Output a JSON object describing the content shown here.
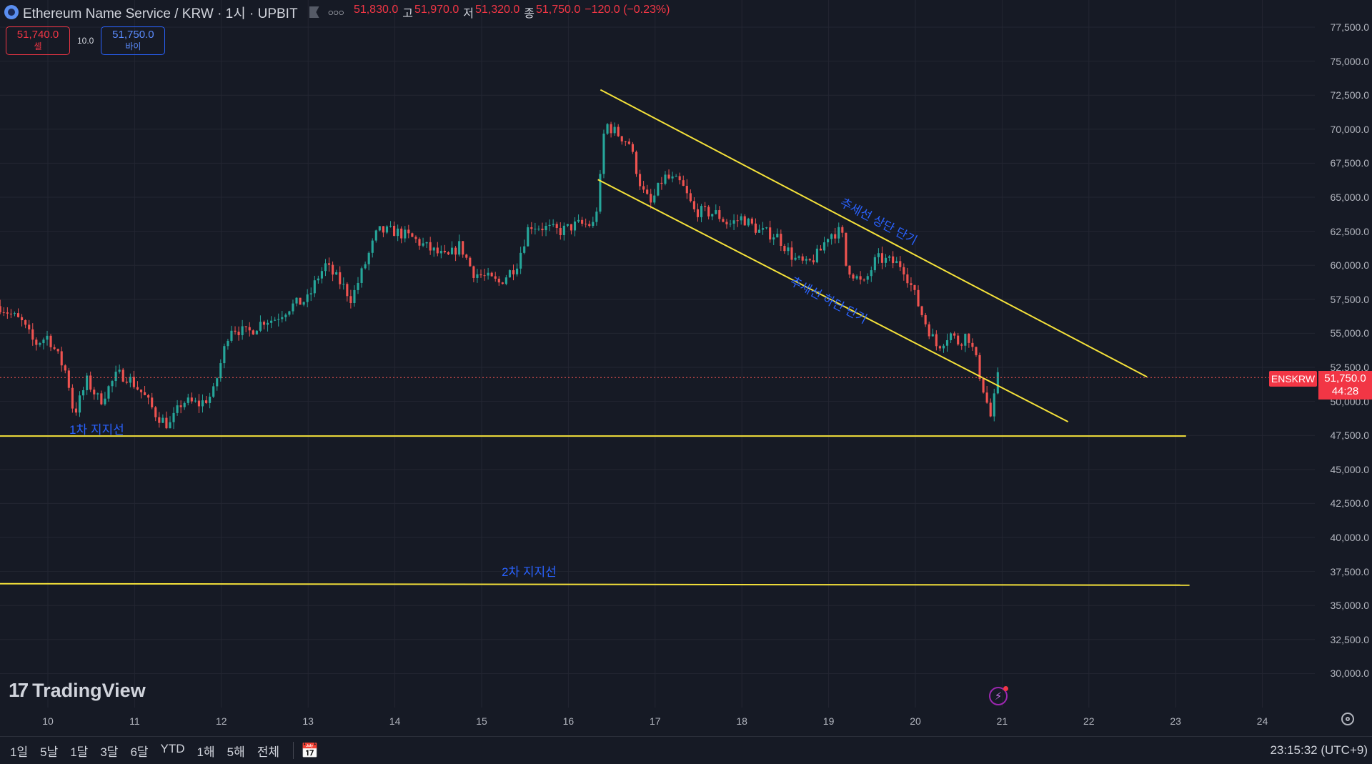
{
  "header": {
    "symbol_title": "Ethereum Name Service / KRW · 1시 · UPBIT",
    "ohlc": [
      {
        "key": "",
        "value": "51,830.0"
      },
      {
        "key": "고",
        "value": "51,970.0"
      },
      {
        "key": "저",
        "value": "51,320.0"
      },
      {
        "key": "종",
        "value": "51,750.0"
      },
      {
        "key": "",
        "value": "−120.0 (−0.23%)"
      }
    ],
    "icons": [
      "coin-icon",
      "flag-icon",
      "more-dots-icon"
    ]
  },
  "trade": {
    "sell_price": "51,740.0",
    "sell_label": "셀",
    "spread": "10.0",
    "buy_price": "51,750.0",
    "buy_label": "바이"
  },
  "price_axis": {
    "labels": [
      "77,500.0",
      "75,000.0",
      "72,500.0",
      "70,000.0",
      "67,500.0",
      "65,000.0",
      "62,500.0",
      "60,000.0",
      "57,500.0",
      "55,000.0",
      "52,500.0",
      "50,000.0",
      "47,500.0",
      "45,000.0",
      "42,500.0",
      "40,000.0",
      "37,500.0",
      "35,000.0",
      "32,500.0",
      "30,000.0"
    ],
    "values": [
      77500,
      75000,
      72500,
      70000,
      67500,
      65000,
      62500,
      60000,
      57500,
      55000,
      52500,
      50000,
      47500,
      45000,
      42500,
      40000,
      37500,
      35000,
      32500,
      30000
    ]
  },
  "time_axis": {
    "labels": [
      "10",
      "11",
      "12",
      "13",
      "14",
      "15",
      "16",
      "17",
      "18",
      "19",
      "20",
      "21",
      "22",
      "23",
      "24"
    ],
    "days": [
      10,
      11,
      12,
      13,
      14,
      15,
      16,
      17,
      18,
      19,
      20,
      21,
      22,
      23,
      24
    ]
  },
  "current_price": {
    "symbol_tag": "ENSKRW",
    "price": "51,750.0",
    "countdown": "44:28",
    "value": 51750
  },
  "annotations": {
    "upper_trend": "추세선 상단 단기",
    "lower_trend": "추세선 하단 단기",
    "support1": "1차 지지선",
    "support2": "2차 지지선"
  },
  "branding": {
    "logo_text": "TradingView"
  },
  "bottom_bar": {
    "ranges": [
      "1일",
      "5날",
      "1달",
      "3달",
      "6달",
      "YTD",
      "1해",
      "5해",
      "전체"
    ],
    "clock": "23:15:32 (UTC+9)"
  },
  "colors": {
    "background": "#161a25",
    "grid": "#232632",
    "up": "#26a69a",
    "down": "#ef5350",
    "trendline": "#f5e23a",
    "annotation": "#2962ff"
  },
  "chart_data": {
    "type": "candlestick",
    "interval": "1h",
    "y_range": [
      28750,
      78750
    ],
    "trendlines": [
      {
        "name": "upper",
        "from": [
          16.37,
          72900
        ],
        "to": [
          22.67,
          51800
        ]
      },
      {
        "name": "lower",
        "from": [
          16.34,
          66300
        ],
        "to": [
          21.76,
          48500
        ]
      }
    ],
    "horizontal_lines": [
      {
        "name": "support1",
        "value": 47450
      },
      {
        "name": "support2",
        "value": 36600
      }
    ],
    "anchors": [
      [
        9.45,
        57000
      ],
      [
        9.7,
        55800
      ],
      [
        9.85,
        54200
      ],
      [
        10.0,
        54800
      ],
      [
        10.22,
        52000
      ],
      [
        10.3,
        49000
      ],
      [
        10.45,
        51500
      ],
      [
        10.6,
        50000
      ],
      [
        10.8,
        52000
      ],
      [
        10.92,
        51800
      ],
      [
        11.1,
        50500
      ],
      [
        11.25,
        49000
      ],
      [
        11.4,
        48200
      ],
      [
        11.55,
        50000
      ],
      [
        11.75,
        49800
      ],
      [
        11.9,
        50500
      ],
      [
        12.0,
        53000
      ],
      [
        12.1,
        55500
      ],
      [
        12.3,
        55000
      ],
      [
        12.5,
        56000
      ],
      [
        12.6,
        56000
      ],
      [
        12.8,
        57000
      ],
      [
        13.0,
        57500
      ],
      [
        13.1,
        59000
      ],
      [
        13.2,
        60000
      ],
      [
        13.4,
        58500
      ],
      [
        13.5,
        57500
      ],
      [
        13.65,
        60000
      ],
      [
        13.8,
        62500
      ],
      [
        14.0,
        62500
      ],
      [
        14.2,
        62000
      ],
      [
        14.4,
        61200
      ],
      [
        14.6,
        60500
      ],
      [
        14.75,
        61500
      ],
      [
        14.9,
        59500
      ],
      [
        15.2,
        58700
      ],
      [
        15.4,
        60000
      ],
      [
        15.55,
        63000
      ],
      [
        15.7,
        62800
      ],
      [
        15.9,
        62500
      ],
      [
        16.1,
        63000
      ],
      [
        16.3,
        63000
      ],
      [
        16.36,
        65800
      ],
      [
        16.42,
        70500
      ],
      [
        16.5,
        70000
      ],
      [
        16.7,
        69000
      ],
      [
        16.85,
        65500
      ],
      [
        16.95,
        64500
      ],
      [
        17.1,
        66500
      ],
      [
        17.3,
        66000
      ],
      [
        17.45,
        64000
      ],
      [
        17.7,
        63800
      ],
      [
        17.85,
        63000
      ],
      [
        18.0,
        63500
      ],
      [
        18.2,
        62500
      ],
      [
        18.4,
        62200
      ],
      [
        18.6,
        60500
      ],
      [
        18.75,
        60000
      ],
      [
        18.9,
        61000
      ],
      [
        19.0,
        62300
      ],
      [
        19.15,
        62500
      ],
      [
        19.2,
        60000
      ],
      [
        19.4,
        58500
      ],
      [
        19.55,
        60500
      ],
      [
        19.7,
        60300
      ],
      [
        19.85,
        60000
      ],
      [
        19.95,
        58500
      ],
      [
        20.1,
        56000
      ],
      [
        20.25,
        54000
      ],
      [
        20.4,
        55000
      ],
      [
        20.5,
        54300
      ],
      [
        20.6,
        55000
      ],
      [
        20.7,
        53000
      ],
      [
        20.8,
        50500
      ],
      [
        20.87,
        48800
      ],
      [
        20.95,
        51750
      ]
    ]
  }
}
